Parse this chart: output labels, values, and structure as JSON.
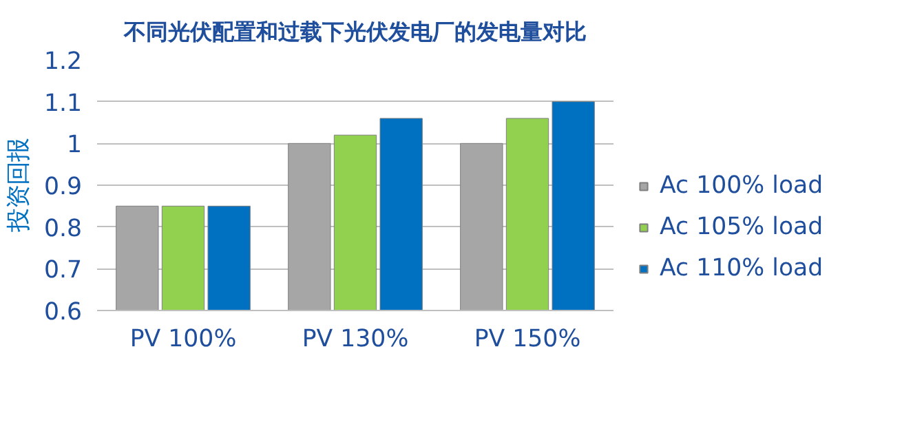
{
  "chart_data": {
    "type": "bar",
    "title": "不同光伏配置和过载下光伏发电厂的发电量对比",
    "ylabel": "投资回报",
    "categories": [
      "PV 100%",
      "PV 130%",
      "PV 150%"
    ],
    "series": [
      {
        "name": "Ac 100% load",
        "color": "#a6a6a6",
        "values": [
          0.85,
          1.0,
          1.0
        ]
      },
      {
        "name": "Ac 105% load",
        "color": "#92d050",
        "values": [
          0.85,
          1.02,
          1.06
        ]
      },
      {
        "name": "Ac 110% load",
        "color": "#0070c0",
        "values": [
          0.85,
          1.06,
          1.1
        ]
      }
    ],
    "ylim": [
      0.6,
      1.2
    ],
    "yticks": [
      0.6,
      0.7,
      0.8,
      0.9,
      1,
      1.1,
      1.2
    ],
    "grid": "y",
    "legend": "right"
  }
}
